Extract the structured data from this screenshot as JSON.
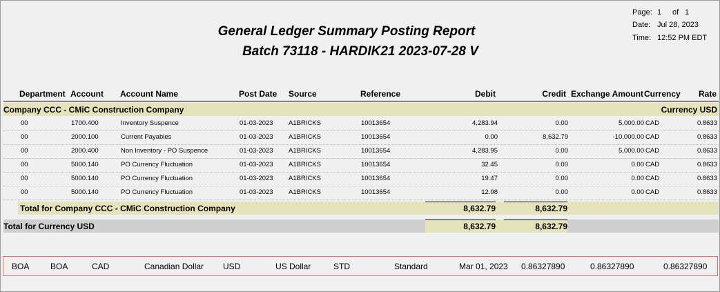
{
  "report": {
    "title": "General Ledger Summary Posting Report",
    "subtitle": "Batch 73118 - HARDIK21 2023-07-28 V"
  },
  "meta": {
    "page_label": "Page:",
    "page_value": "1",
    "of_label": "of",
    "of_value": "1",
    "date_label": "Date:",
    "date_value": "Jul 28, 2023",
    "time_label": "Time:",
    "time_value": "12:52 PM EDT"
  },
  "columns": {
    "department": "Department",
    "account": "Account",
    "account_name": "Account Name",
    "post_date": "Post Date",
    "source": "Source",
    "reference": "Reference",
    "debit": "Debit",
    "credit": "Credit",
    "exchange_amount": "Exchange Amount",
    "currency": "Currency",
    "rate": "Rate"
  },
  "group": {
    "company_label": "Company CCC - CMiC Construction Company",
    "currency_label": "Currency USD"
  },
  "rows": [
    {
      "dept": "00",
      "account": "1700.400",
      "name": "Inventory Suspence",
      "post_date": "01-03-2023",
      "source": "A1BRICKS",
      "reference": "10013654",
      "debit": "4,283.94",
      "credit": "0.00",
      "exchange": "5,000.00",
      "currency": "CAD",
      "rate": "0.8633"
    },
    {
      "dept": "00",
      "account": "2000.100",
      "name": "Current Payables",
      "post_date": "01-03-2023",
      "source": "A1BRICKS",
      "reference": "10013654",
      "debit": "0.00",
      "credit": "8,632.79",
      "exchange": "-10,000.00",
      "currency": "CAD",
      "rate": "0.8633"
    },
    {
      "dept": "00",
      "account": "2000.400",
      "name": "Non Inventory - PO Suspence",
      "post_date": "01-03-2023",
      "source": "A1BRICKS",
      "reference": "10013654",
      "debit": "4,283.95",
      "credit": "0.00",
      "exchange": "5,000.00",
      "currency": "CAD",
      "rate": "0.8633"
    },
    {
      "dept": "00",
      "account": "5000.140",
      "name": "PO Currency Fluctuation",
      "post_date": "01-03-2023",
      "source": "A1BRICKS",
      "reference": "10013654",
      "debit": "32.45",
      "credit": "0.00",
      "exchange": "0.00",
      "currency": "CAD",
      "rate": "0.8633"
    },
    {
      "dept": "00",
      "account": "5000.140",
      "name": "PO Currency Fluctuation",
      "post_date": "01-03-2023",
      "source": "A1BRICKS",
      "reference": "10013654",
      "debit": "19.47",
      "credit": "0.00",
      "exchange": "0.00",
      "currency": "CAD",
      "rate": "0.8633"
    },
    {
      "dept": "00",
      "account": "5000.140",
      "name": "PO Currency Fluctuation",
      "post_date": "01-03-2023",
      "source": "A1BRICKS",
      "reference": "10013654",
      "debit": "12.98",
      "credit": "0.00",
      "exchange": "0.00",
      "currency": "CAD",
      "rate": "0.8633"
    }
  ],
  "totals": {
    "company_label": "Total for Company CCC - CMiC Construction Company",
    "company_debit": "8,632.79",
    "company_credit": "8,632.79",
    "currency_label": "Total for Currency USD",
    "currency_debit": "8,632.79",
    "currency_credit": "8,632.79"
  },
  "bottom_row": {
    "c1": "BOA",
    "c2": "BOA",
    "c3": "CAD",
    "c4": "Canadian Dollar",
    "c5": "USD",
    "c6": "US Dollar",
    "c7": "STD",
    "c8": "Standard",
    "c9": "Mar 01, 2023",
    "c10": "0.86327890",
    "c11": "0.86327890",
    "c12": "0.86327890"
  },
  "colors": {
    "band": "#e5e3bb",
    "gray_band": "#cfcfcf",
    "highlight_border": "#e36c6c",
    "background": "#f0f0f0"
  }
}
